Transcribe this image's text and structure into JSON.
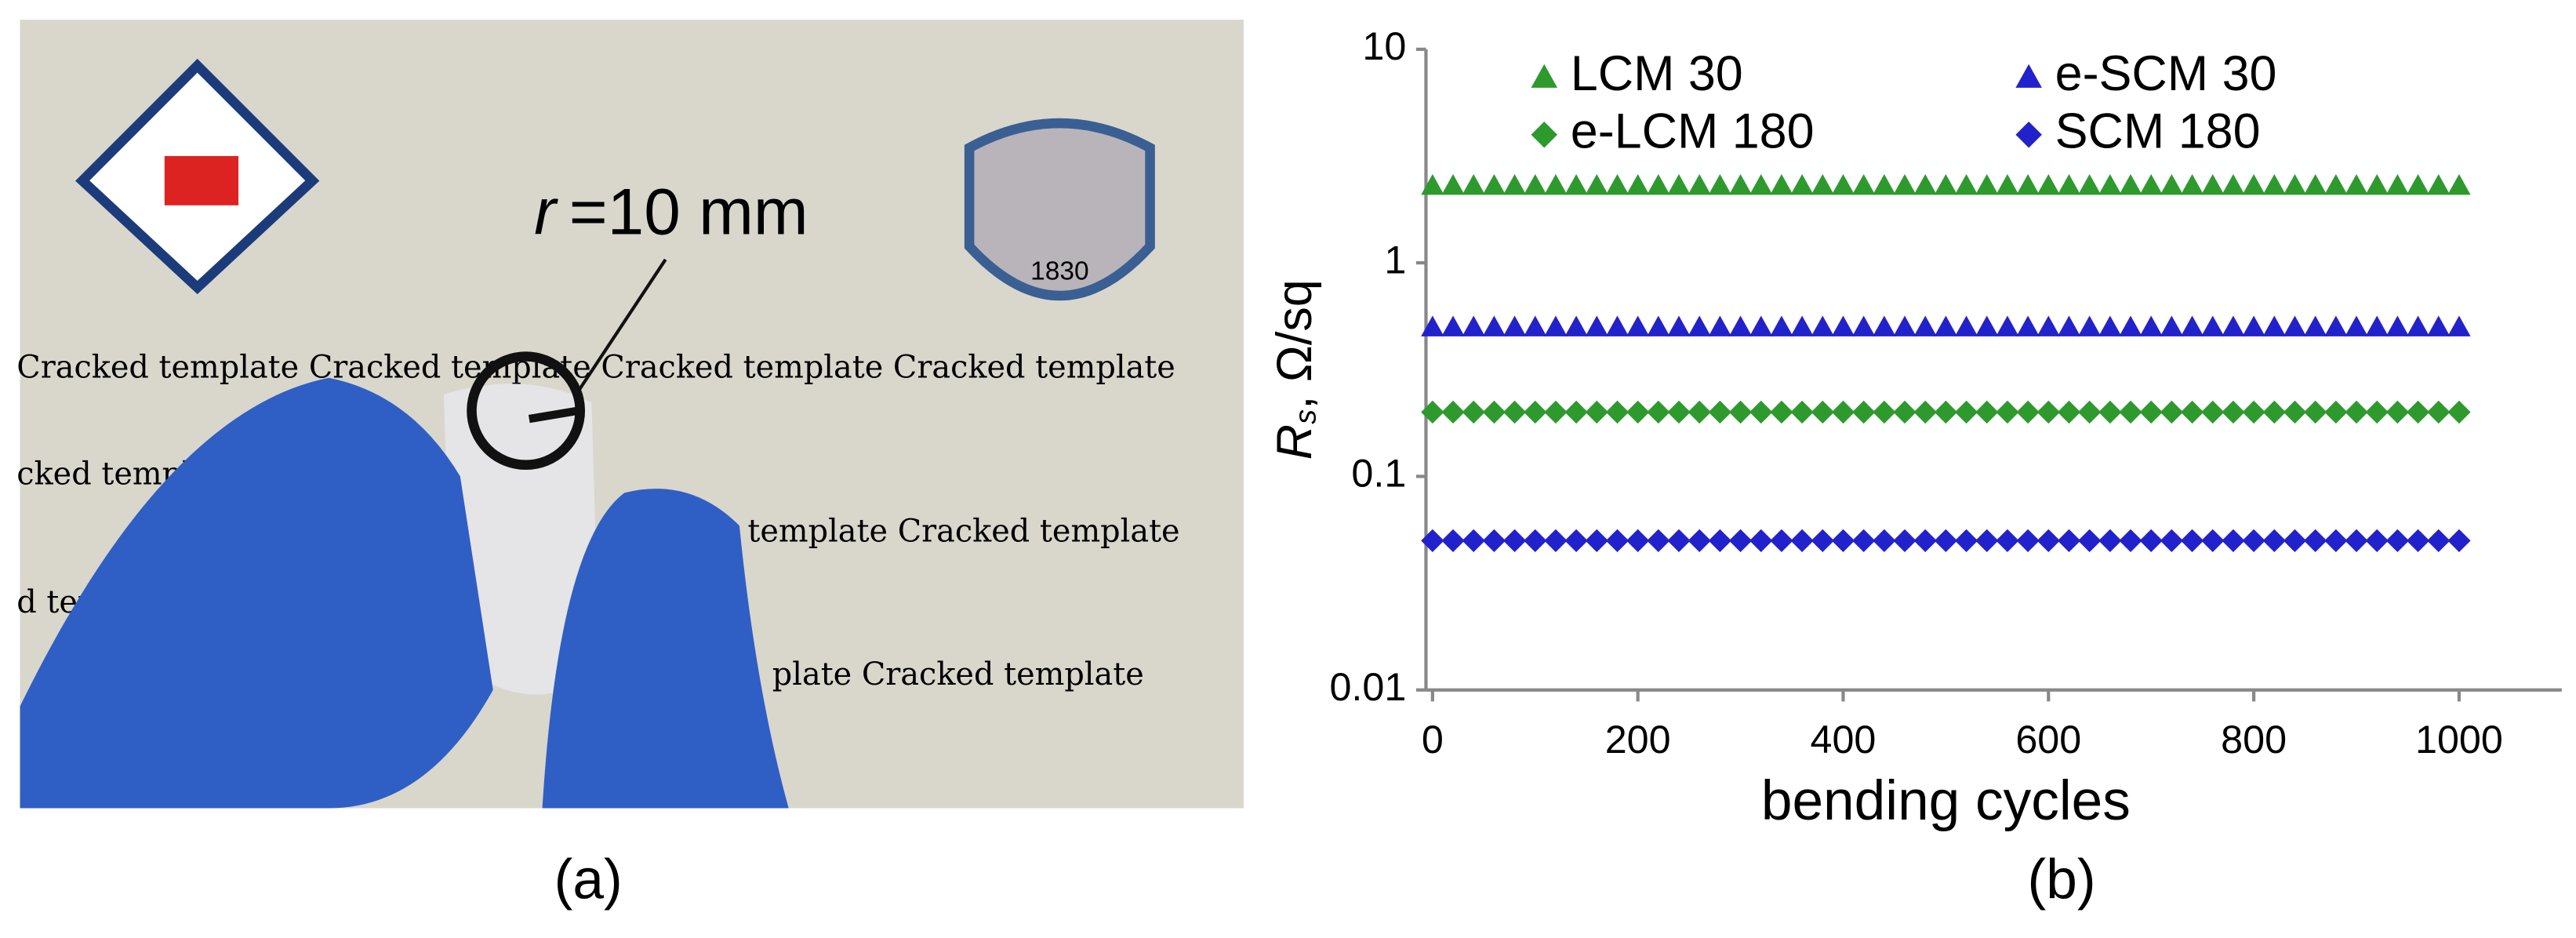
{
  "photo": {
    "annotation_symbol": "r",
    "annotation": "=10 mm",
    "background_text": [
      "Cracked template Cracked template Cracked template Cracked template",
      "cked template",
      "template Cracked template",
      "d tem",
      "plate Cracked template"
    ],
    "seal_year": "1830"
  },
  "panel_labels": [
    "(a)",
    "(b)"
  ],
  "chart_data": {
    "type": "scatter",
    "xlabel": "bending cycles",
    "ylabel": {
      "symbol": "R",
      "subscript": "s",
      "unit": ", Ω/sq"
    },
    "log_y": true,
    "xlim": [
      0,
      1100
    ],
    "ylim": [
      0.01,
      10
    ],
    "xticks": [
      0,
      200,
      400,
      600,
      800,
      1000
    ],
    "yticks": [
      0.01,
      0.1,
      1,
      10
    ],
    "x": [
      0,
      20,
      40,
      60,
      80,
      100,
      120,
      140,
      160,
      180,
      200,
      220,
      240,
      260,
      280,
      300,
      320,
      340,
      360,
      380,
      400,
      420,
      440,
      460,
      480,
      500,
      520,
      540,
      560,
      580,
      600,
      620,
      640,
      660,
      680,
      700,
      720,
      740,
      760,
      780,
      800,
      820,
      840,
      860,
      880,
      900,
      920,
      940,
      960,
      980,
      1000
    ],
    "series": [
      {
        "name": "LCM 30",
        "color": "#2e9a2e",
        "marker": "triangle",
        "values": [
          2.3,
          2.3,
          2.3,
          2.3,
          2.3,
          2.3,
          2.3,
          2.3,
          2.3,
          2.3,
          2.3,
          2.3,
          2.3,
          2.3,
          2.3,
          2.3,
          2.3,
          2.3,
          2.3,
          2.3,
          2.3,
          2.3,
          2.3,
          2.3,
          2.3,
          2.3,
          2.3,
          2.3,
          2.3,
          2.3,
          2.3,
          2.3,
          2.3,
          2.3,
          2.3,
          2.3,
          2.3,
          2.3,
          2.3,
          2.3,
          2.3,
          2.3,
          2.3,
          2.3,
          2.3,
          2.3,
          2.3,
          2.3,
          2.3,
          2.3,
          2.3
        ]
      },
      {
        "name": "e-SCM 30",
        "color": "#2222cc",
        "marker": "triangle",
        "values": [
          0.5,
          0.5,
          0.5,
          0.5,
          0.5,
          0.5,
          0.5,
          0.5,
          0.5,
          0.5,
          0.5,
          0.5,
          0.5,
          0.5,
          0.5,
          0.5,
          0.5,
          0.5,
          0.5,
          0.5,
          0.5,
          0.5,
          0.5,
          0.5,
          0.5,
          0.5,
          0.5,
          0.5,
          0.5,
          0.5,
          0.5,
          0.5,
          0.5,
          0.5,
          0.5,
          0.5,
          0.5,
          0.5,
          0.5,
          0.5,
          0.5,
          0.5,
          0.5,
          0.5,
          0.5,
          0.5,
          0.5,
          0.5,
          0.5,
          0.5,
          0.5
        ]
      },
      {
        "name": "e-LCM 180",
        "color": "#2e9a2e",
        "marker": "diamond",
        "values": [
          0.2,
          0.2,
          0.2,
          0.2,
          0.2,
          0.2,
          0.2,
          0.2,
          0.2,
          0.2,
          0.2,
          0.2,
          0.2,
          0.2,
          0.2,
          0.2,
          0.2,
          0.2,
          0.2,
          0.2,
          0.2,
          0.2,
          0.2,
          0.2,
          0.2,
          0.2,
          0.2,
          0.2,
          0.2,
          0.2,
          0.2,
          0.2,
          0.2,
          0.2,
          0.2,
          0.2,
          0.2,
          0.2,
          0.2,
          0.2,
          0.2,
          0.2,
          0.2,
          0.2,
          0.2,
          0.2,
          0.2,
          0.2,
          0.2,
          0.2,
          0.2
        ]
      },
      {
        "name": "SCM 180",
        "color": "#2222cc",
        "marker": "diamond",
        "values": [
          0.05,
          0.05,
          0.05,
          0.05,
          0.05,
          0.05,
          0.05,
          0.05,
          0.05,
          0.05,
          0.05,
          0.05,
          0.05,
          0.05,
          0.05,
          0.05,
          0.05,
          0.05,
          0.05,
          0.05,
          0.05,
          0.05,
          0.05,
          0.05,
          0.05,
          0.05,
          0.05,
          0.05,
          0.05,
          0.05,
          0.05,
          0.05,
          0.05,
          0.05,
          0.05,
          0.05,
          0.05,
          0.05,
          0.05,
          0.05,
          0.05,
          0.05,
          0.05,
          0.05,
          0.05,
          0.05,
          0.05,
          0.05,
          0.05,
          0.05,
          0.05
        ]
      }
    ]
  }
}
